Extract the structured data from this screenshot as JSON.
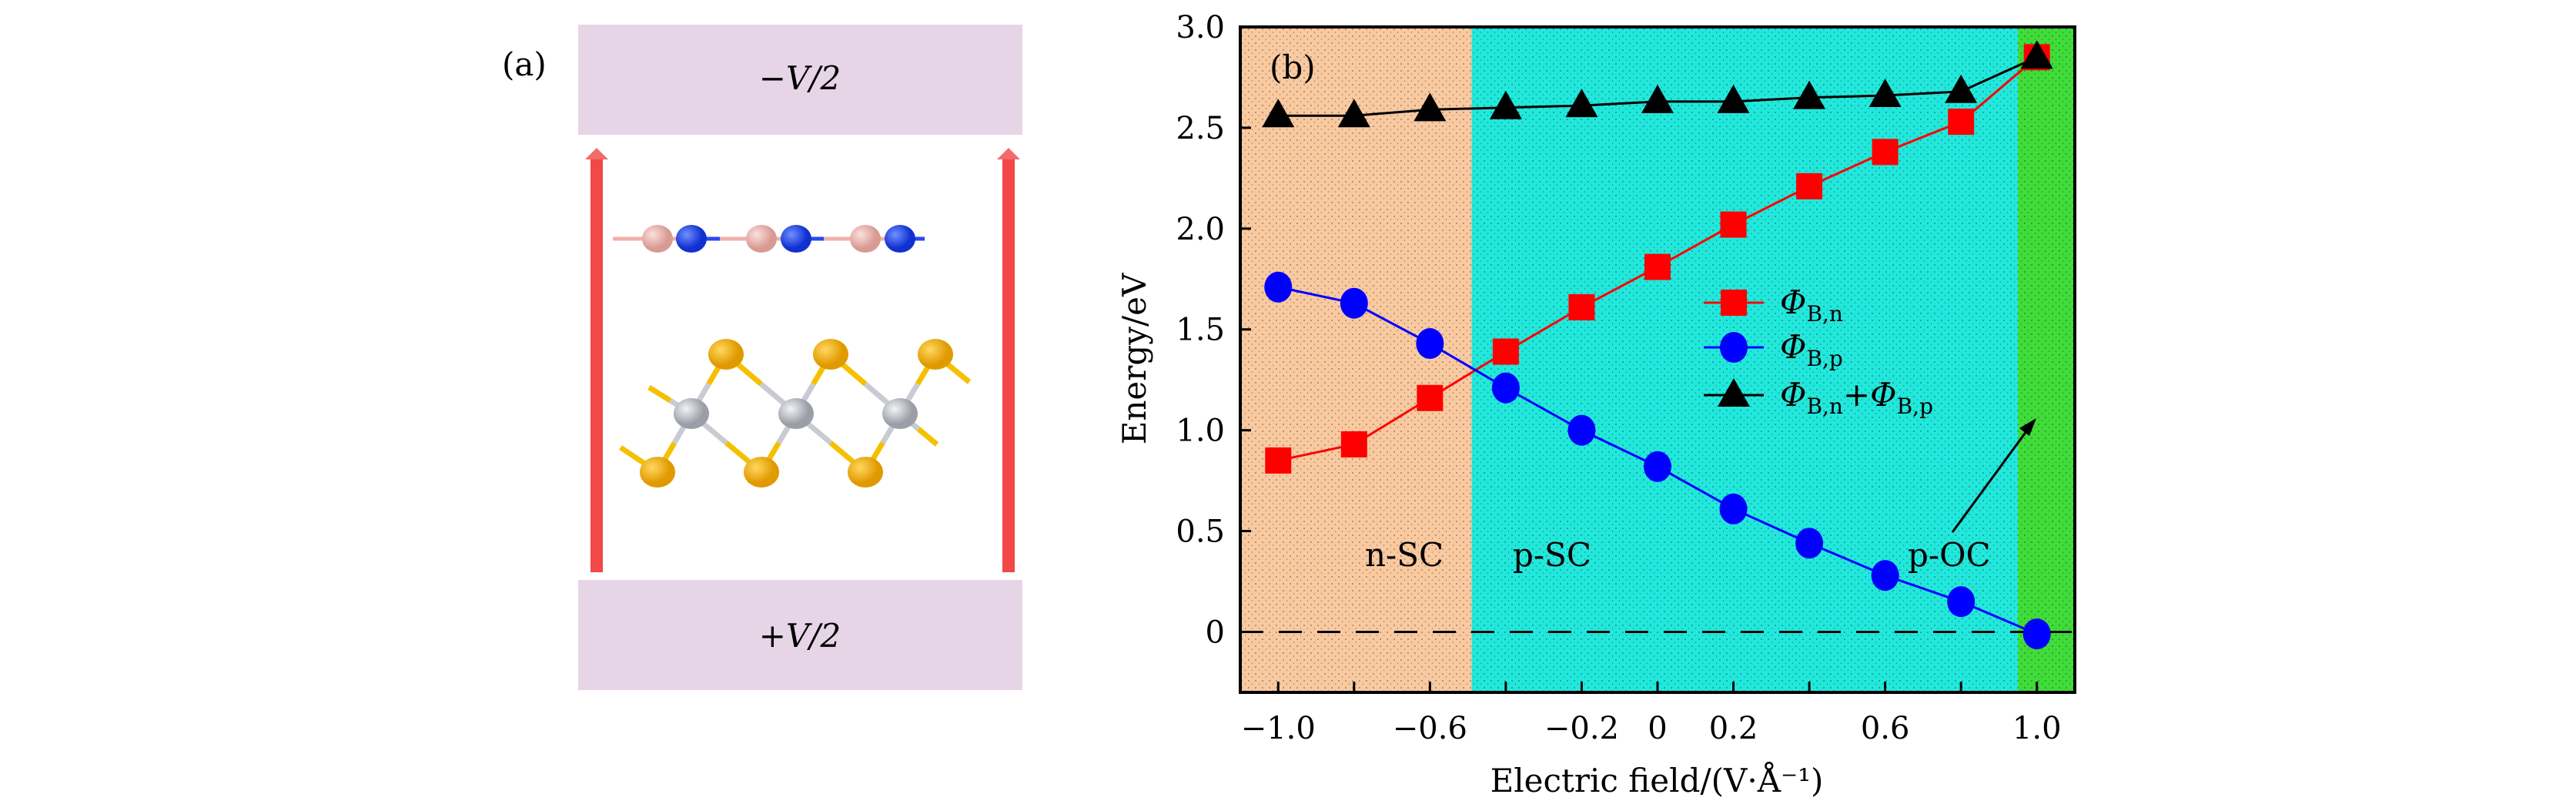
{
  "panel_a": {
    "label": "(a)",
    "top_electrode": "−V/2",
    "bottom_electrode": "+V/2",
    "colors": {
      "electrode": "#e6d5e6",
      "arrow": "#f24848",
      "boron": "#efb0aa",
      "nitrogen": "#2848f0",
      "sulfur": "#f5b000",
      "metal": "#c8ccd2"
    }
  },
  "chart_data": {
    "type": "line",
    "panel_label": "(b)",
    "xlabel": "Electric field/(V·Å⁻¹)",
    "ylabel": "Energy/eV",
    "xlim": [
      -1.1,
      1.1
    ],
    "ylim": [
      -0.3,
      3.0
    ],
    "x_ticks": [
      -1.0,
      -0.8,
      -0.6,
      -0.4,
      -0.2,
      0,
      0.2,
      0.4,
      0.6,
      0.8,
      1.0
    ],
    "x_tick_labels": [
      {
        "value": -1.0,
        "text": "−1.0"
      },
      {
        "value": -0.6,
        "text": "−0.6"
      },
      {
        "value": -0.2,
        "text": "−0.2"
      },
      {
        "value": 0,
        "text": "0"
      },
      {
        "value": 0.2,
        "text": "0.2"
      },
      {
        "value": 0.6,
        "text": "0.6"
      },
      {
        "value": 1.0,
        "text": "1.0"
      }
    ],
    "y_ticks": [
      0,
      0.5,
      1.0,
      1.5,
      2.0,
      2.5,
      3.0
    ],
    "y_tick_labels": [
      "0",
      "0.5",
      "1.0",
      "1.5",
      "2.0",
      "2.5",
      "3.0"
    ],
    "x": [
      -1.0,
      -0.8,
      -0.6,
      -0.4,
      -0.2,
      0,
      0.2,
      0.4,
      0.6,
      0.8,
      1.0
    ],
    "series": [
      {
        "name": "ΦB,n",
        "symbol": "Φ",
        "sub": "B,n",
        "marker": "square",
        "color": "#ff0000",
        "values": [
          0.85,
          0.93,
          1.16,
          1.39,
          1.61,
          1.81,
          2.02,
          2.21,
          2.38,
          2.53,
          2.85
        ]
      },
      {
        "name": "ΦB,p",
        "symbol": "Φ",
        "sub": "B,p",
        "marker": "circle",
        "color": "#0000ff",
        "values": [
          1.71,
          1.63,
          1.43,
          1.21,
          1.0,
          0.82,
          0.61,
          0.44,
          0.28,
          0.15,
          -0.01
        ]
      },
      {
        "name": "ΦB,n+ΦB,p",
        "symbol": "Φ",
        "sub": "B,n",
        "plus": "+",
        "symbol2": "Φ",
        "sub2": "B,p",
        "marker": "triangle",
        "color": "#000000",
        "values": [
          2.56,
          2.56,
          2.59,
          2.6,
          2.61,
          2.63,
          2.63,
          2.65,
          2.66,
          2.68,
          2.85
        ]
      }
    ],
    "regions": [
      {
        "label": "n-SC",
        "from": -1.1,
        "to": -0.49,
        "color": "#f9c9a0"
      },
      {
        "label": "p-SC",
        "from": -0.49,
        "to": 0.95,
        "color": "#22e8dc"
      },
      {
        "label": "p-OC",
        "from": 0.95,
        "to": 1.1,
        "color": "#3fdc3a"
      }
    ],
    "reference_line": {
      "y": 0,
      "style": "dashed"
    },
    "legend_position": "center-right",
    "grid": false
  }
}
